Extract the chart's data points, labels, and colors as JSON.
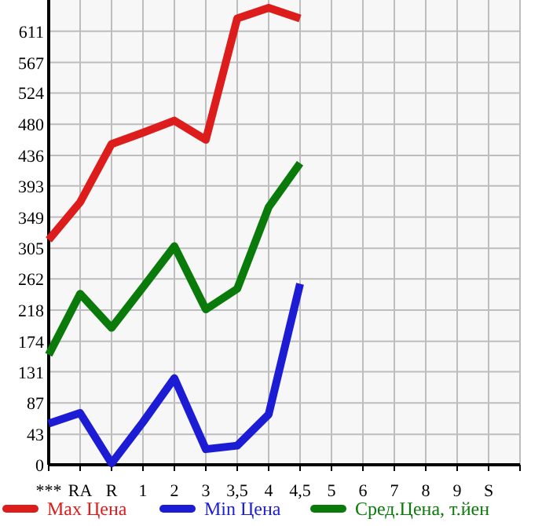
{
  "chart_data": {
    "type": "line",
    "categories": [
      "***",
      "RA",
      "R",
      "1",
      "2",
      "3",
      "3,5",
      "4",
      "4,5",
      "5",
      "6",
      "7",
      "8",
      "9",
      "S",
      null
    ],
    "series": [
      {
        "name": "Max Цена",
        "color": "#dd1c1c",
        "values": [
          317,
          370,
          452,
          468,
          485,
          458,
          629,
          644,
          629,
          null,
          null,
          null,
          null,
          null,
          null,
          null
        ]
      },
      {
        "name": "Min Цена",
        "color": "#1c1cd4",
        "values": [
          58,
          73,
          2,
          60,
          122,
          22,
          27,
          71,
          255,
          null,
          null,
          null,
          null,
          null,
          null,
          null
        ]
      },
      {
        "name": "Сред.Цена, т.йен",
        "color": "#0a7a0a",
        "values": [
          155,
          241,
          193,
          250,
          308,
          219,
          248,
          363,
          425,
          null,
          null,
          null,
          null,
          null,
          null,
          null
        ]
      }
    ],
    "ylim": [
      0,
      655
    ],
    "yticks": [
      0,
      43,
      87,
      131,
      174,
      218,
      262,
      305,
      349,
      393,
      436,
      480,
      524,
      567,
      611
    ],
    "grid": true,
    "legend": "bottom",
    "marker": "none",
    "line_style": "solid"
  }
}
